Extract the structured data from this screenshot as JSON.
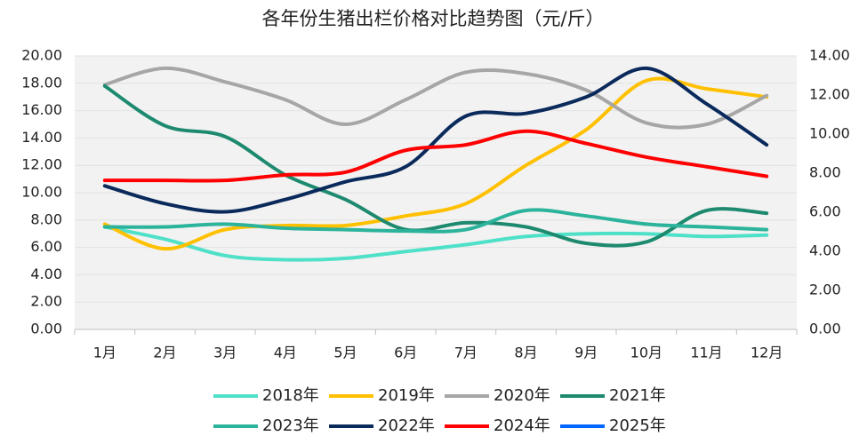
{
  "chart_data": {
    "type": "line",
    "title": "各年份生猪出栏价格对比趋势图（元/斤）",
    "categories": [
      "1月",
      "2月",
      "3月",
      "4月",
      "5月",
      "6月",
      "7月",
      "8月",
      "9月",
      "10月",
      "11月",
      "12月"
    ],
    "series": [
      {
        "name": "2018年",
        "color": "#4fe0c8",
        "values": [
          7.5,
          6.6,
          5.4,
          5.1,
          5.2,
          5.7,
          6.2,
          6.8,
          7.0,
          7.0,
          6.8,
          6.9
        ]
      },
      {
        "name": "2019年",
        "color": "#ffc000",
        "values": [
          7.7,
          5.9,
          7.3,
          7.6,
          7.6,
          8.3,
          9.2,
          12.0,
          14.6,
          18.2,
          17.6,
          17.0
        ]
      },
      {
        "name": "2020年",
        "color": "#a6a6a6",
        "values": [
          17.9,
          19.1,
          18.1,
          16.8,
          15.0,
          16.8,
          18.8,
          18.7,
          17.5,
          15.1,
          15.0,
          17.1
        ]
      },
      {
        "name": "2021年",
        "color": "#1d8a6f",
        "values": [
          17.8,
          14.9,
          14.1,
          11.3,
          9.5,
          7.3,
          7.8,
          7.5,
          6.3,
          6.4,
          8.7,
          8.5
        ]
      },
      {
        "name": "2023年",
        "color": "#2bb39b",
        "values": [
          7.5,
          7.5,
          7.7,
          7.4,
          7.3,
          7.2,
          7.3,
          8.7,
          8.3,
          7.7,
          7.5,
          7.3
        ]
      },
      {
        "name": "2022年",
        "color": "#0b2a5c",
        "values": [
          10.5,
          9.2,
          8.6,
          9.5,
          10.8,
          11.9,
          15.6,
          15.8,
          17.0,
          19.1,
          16.5,
          13.5
        ]
      },
      {
        "name": "2024年",
        "color": "#ff0000",
        "values": [
          10.9,
          10.9,
          10.9,
          11.3,
          11.5,
          13.1,
          13.5,
          14.5,
          13.6,
          12.6,
          11.9,
          11.2
        ]
      },
      {
        "name": "2025年",
        "color": "#0066ff",
        "values": [
          null,
          null,
          null,
          null,
          null,
          null,
          null,
          null,
          null,
          null,
          null,
          null
        ]
      }
    ],
    "ylim": [
      0,
      20
    ],
    "yticks": [
      {
        "value": 0,
        "label": "0.00"
      },
      {
        "value": 2,
        "label": "2.00"
      },
      {
        "value": 4,
        "label": "4.00"
      },
      {
        "value": 6,
        "label": "6.00"
      },
      {
        "value": 8,
        "label": "8.00"
      },
      {
        "value": 10,
        "label": "10.00"
      },
      {
        "value": 12,
        "label": "12.00"
      },
      {
        "value": 14,
        "label": "14.00"
      },
      {
        "value": 16,
        "label": "16.00"
      },
      {
        "value": 18,
        "label": "18.00"
      },
      {
        "value": 20,
        "label": "20.00"
      }
    ],
    "y2lim": [
      0,
      14
    ],
    "y2ticks": [
      {
        "value": 0,
        "label": "0.00"
      },
      {
        "value": 2,
        "label": "2.00"
      },
      {
        "value": 4,
        "label": "4.00"
      },
      {
        "value": 6,
        "label": "6.00"
      },
      {
        "value": 8,
        "label": "8.00"
      },
      {
        "value": 10,
        "label": "10.00"
      },
      {
        "value": 12,
        "label": "12.00"
      },
      {
        "value": 14,
        "label": "14.00"
      }
    ],
    "grid": true,
    "legend": "bottom"
  }
}
